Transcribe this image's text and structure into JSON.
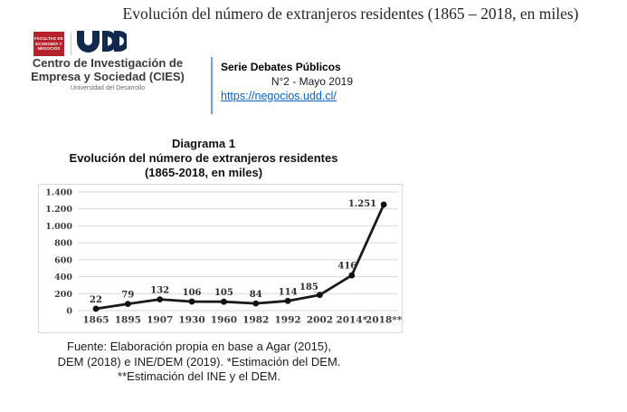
{
  "page": {
    "title": "Evolución del número de extranjeros residentes (1865 – 2018, en miles)"
  },
  "logo": {
    "faculty_lines": [
      "FACULTAD DE",
      "ECONOMÍA Y",
      "NEGOCIOS"
    ],
    "university_mark": "UDD",
    "brand_red": "#B5222B",
    "brand_navy": "#12284C",
    "center_line1": "Centro de Investigación de",
    "center_line2": "Empresa y Sociedad (CIES)",
    "university_name": "Universidad del Desarrollo"
  },
  "serie": {
    "title": "Serie Debates Públicos",
    "issue": "N°2 - Mayo 2019",
    "url": "https://negocios.udd.cl/",
    "accent_color": "#6D9EEB",
    "link_color": "#0563C1"
  },
  "chart_headings": {
    "line1": "Diagrama 1",
    "line2": "Evolución del número de extranjeros residentes",
    "line3": "(1865-2018, en miles)"
  },
  "chart_data": {
    "type": "line",
    "title": "Diagrama 1 — Evolución del número de extranjeros residentes (1865-2018, en miles)",
    "categories": [
      "1865",
      "1895",
      "1907",
      "1930",
      "1960",
      "1982",
      "1992",
      "2002",
      "2014*",
      "2018**"
    ],
    "values": [
      22,
      79,
      132,
      106,
      105,
      84,
      114,
      185,
      416,
      1251
    ],
    "point_labels": [
      "22",
      "79",
      "132",
      "106",
      "105",
      "84",
      "114",
      "185",
      "416",
      "1.251"
    ],
    "y_ticks": [
      0,
      200,
      400,
      600,
      800,
      1000,
      1200,
      1400
    ],
    "y_tick_labels": [
      "0",
      "200",
      "400",
      "600",
      "800",
      "1.000",
      "1.200",
      "1.400"
    ],
    "ylim": [
      0,
      1400
    ],
    "grid": true,
    "legend": "none",
    "line_color": "#1a1a1a",
    "marker_color": "#111111",
    "grid_color": "#dadada",
    "tick_label_color": "#3b3b3b"
  },
  "footer": {
    "line1": "Fuente: Elaboración propia en base a Agar (2015),",
    "line2": "DEM (2018) e INE/DEM (2019). *Estimación del DEM.",
    "line3": "**Estimación del INE y el DEM."
  }
}
